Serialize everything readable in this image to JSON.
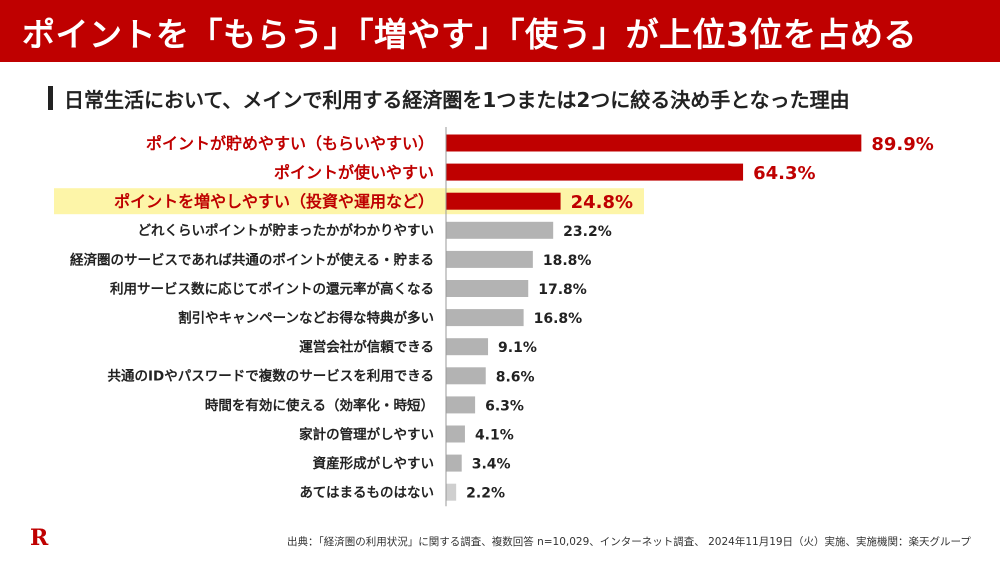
{
  "header": {
    "title": "ポイントを「もらう」「増やす」「使う」が上位3位を占める"
  },
  "subtitle": "日常生活において、メインで利用する経済圏を1つまたは2つに絞る決め手となった理由",
  "footer": {
    "source": "出典：「経済圏の利用状況」に関する調査、複数回答 n=10,029、インターネット調査、 2024年11月19日（火）実施、実施機関：楽天グループ"
  },
  "logo": {
    "text": "R"
  },
  "colors": {
    "accent": "#bf0000",
    "bar_gray": "#b3b3b3",
    "highlight": "#fdf5a8",
    "text": "#222222"
  },
  "chart_data": {
    "type": "bar",
    "orientation": "horizontal",
    "categories": [
      "ポイントが貯めやすい（もらいやすい）",
      "ポイントが使いやすい",
      "ポイントを増やしやすい（投資や運用など）",
      "どれくらいポイントが貯まったかがわかりやすい",
      "経済圏のサービスであれば共通のポイントが使える・貯まる",
      "利用サービス数に応じてポイントの還元率が高くなる",
      "割引やキャンペーンなどお得な特典が多い",
      "運営会社が信頼できる",
      "共通のIDやパスワードで複数のサービスを利用できる",
      "時間を有効に使える（効率化・時短）",
      "家計の管理がしやすい",
      "資産形成がしやすい",
      "あてはまるものはない"
    ],
    "values": [
      89.9,
      64.3,
      24.8,
      23.2,
      18.8,
      17.8,
      16.8,
      9.1,
      8.6,
      6.3,
      4.1,
      3.4,
      2.2
    ],
    "value_labels": [
      "89.9%",
      "64.3%",
      "24.8%",
      "23.2%",
      "18.8%",
      "17.8%",
      "16.8%",
      "9.1%",
      "8.6%",
      "6.3%",
      "4.1%",
      "3.4%",
      "2.2%"
    ],
    "highlighted_top": 3,
    "highlight_label_index": 2,
    "xlim": [
      0,
      100
    ]
  }
}
